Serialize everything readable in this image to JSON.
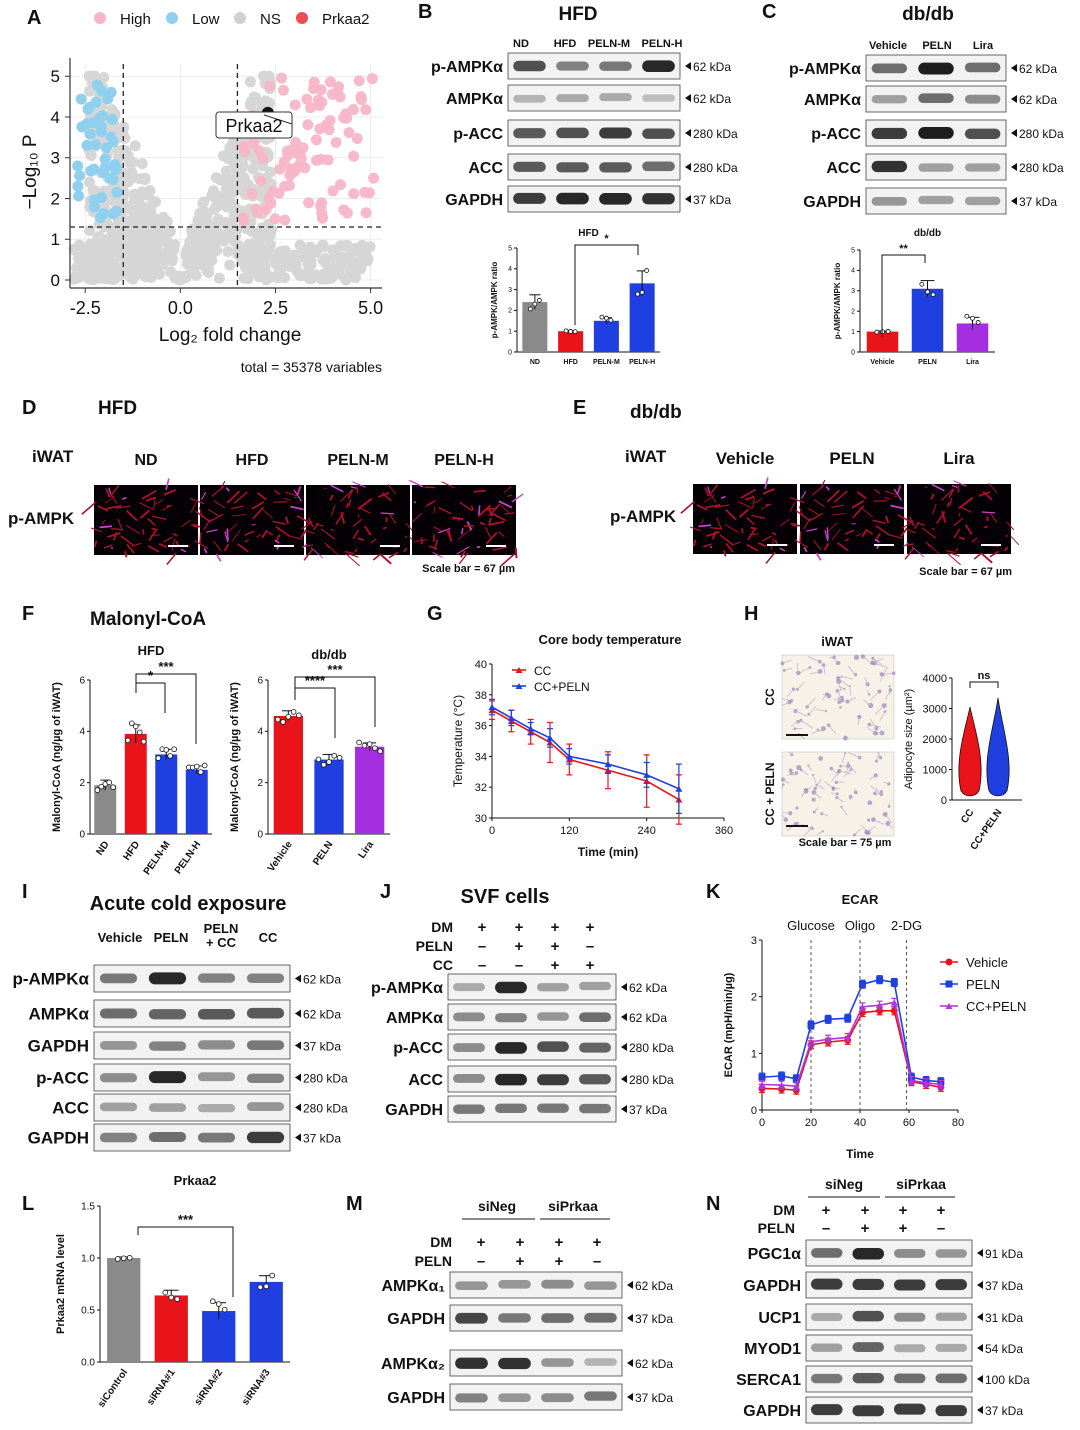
{
  "panel_letters": [
    "A",
    "B",
    "C",
    "D",
    "E",
    "F",
    "G",
    "H",
    "I",
    "J",
    "K",
    "L",
    "M",
    "N"
  ],
  "volcano": {
    "legend": [
      "High",
      "Low",
      "NS",
      "Prkaa2"
    ],
    "legend_colors": [
      "#f7b6c8",
      "#8fd0ee",
      "#d0d0d0",
      "#ee4c55"
    ],
    "xlabel": "Log₂ fold change",
    "ylabel": "−Log₁₀ P",
    "xticks": [
      "-2.5",
      "0.0",
      "2.5",
      "5.0"
    ],
    "yticks": [
      "0",
      "1",
      "2",
      "3",
      "4",
      "5"
    ],
    "highlight": "Prkaa2",
    "total_note": "total = 35378 variables"
  },
  "chart_data": [
    {
      "id": "B-bar",
      "type": "bar",
      "title": "HFD",
      "ylabel": "p-AMPK/AMPK ratio",
      "categories": [
        "ND",
        "HFD",
        "PELN-M",
        "PELN-H"
      ],
      "values": [
        2.4,
        1.0,
        1.5,
        3.3
      ],
      "errors": [
        0.35,
        0.03,
        0.15,
        0.6
      ],
      "colors": [
        "#8a8a8a",
        "#e8141a",
        "#1f3fe0",
        "#1f3fe0"
      ],
      "ylim": [
        0,
        5
      ],
      "yticks": [
        "0",
        "1",
        "2",
        "3",
        "4",
        "5"
      ],
      "sig": [
        "*"
      ]
    },
    {
      "id": "C-bar",
      "type": "bar",
      "title": "db/db",
      "ylabel": "p-AMPK/AMPK ratio",
      "categories": [
        "Vehicle",
        "PELN",
        "Lira"
      ],
      "values": [
        1.0,
        3.1,
        1.4
      ],
      "errors": [
        0.03,
        0.4,
        0.3
      ],
      "colors": [
        "#e8141a",
        "#1f3fe0",
        "#a42ee0"
      ],
      "ylim": [
        0,
        5
      ],
      "yticks": [
        "0",
        "1",
        "2",
        "3",
        "4",
        "5"
      ],
      "sig": [
        "**"
      ]
    },
    {
      "id": "F-hfd",
      "type": "bar",
      "title": "HFD",
      "ylabel": "Malonyl-CoA (ng/µg of iWAT)",
      "categories": [
        "ND",
        "HFD",
        "PELN-M",
        "PELN-H"
      ],
      "values": [
        1.9,
        3.9,
        3.1,
        2.5
      ],
      "errors": [
        0.2,
        0.35,
        0.2,
        0.15
      ],
      "colors": [
        "#8a8a8a",
        "#e8141a",
        "#1f3fe0",
        "#1f3fe0"
      ],
      "ylim": [
        0,
        6
      ],
      "yticks": [
        "0",
        "2",
        "4",
        "6"
      ],
      "sig": [
        "*",
        "***"
      ]
    },
    {
      "id": "F-db",
      "type": "bar",
      "title": "db/db",
      "ylabel": "Malonyl-CoA (ng/µg of iWAT)",
      "categories": [
        "Vehicle",
        "PELN",
        "Lira"
      ],
      "values": [
        4.6,
        2.9,
        3.4
      ],
      "errors": [
        0.2,
        0.2,
        0.15
      ],
      "colors": [
        "#e8141a",
        "#1f3fe0",
        "#a42ee0"
      ],
      "ylim": [
        0,
        6
      ],
      "yticks": [
        "0",
        "2",
        "4",
        "6"
      ],
      "sig": [
        "****",
        "***"
      ]
    },
    {
      "id": "G-line",
      "type": "line",
      "title": "Core body temperature",
      "xlabel": "Time (min)",
      "ylabel": "Temperature (°C)",
      "xlim": [
        0,
        360
      ],
      "ylim": [
        30,
        40
      ],
      "xticks": [
        "0",
        "120",
        "240",
        "360"
      ],
      "yticks": [
        "30",
        "32",
        "34",
        "36",
        "38",
        "40"
      ],
      "x": [
        0,
        30,
        60,
        90,
        120,
        180,
        240,
        290
      ],
      "series": [
        {
          "name": "CC",
          "color": "#e8141a",
          "values": [
            37.0,
            36.3,
            35.6,
            34.9,
            33.8,
            33.1,
            32.4,
            31.2
          ],
          "errors": [
            0.6,
            0.7,
            0.8,
            1.3,
            1.0,
            1.2,
            1.7,
            1.6
          ]
        },
        {
          "name": "CC+PELN",
          "color": "#1f3fe0",
          "values": [
            37.2,
            36.5,
            35.8,
            35.2,
            34.0,
            33.5,
            32.8,
            31.9
          ],
          "errors": [
            0.5,
            0.5,
            0.4,
            0.6,
            0.5,
            0.6,
            0.8,
            1.6
          ]
        }
      ]
    },
    {
      "id": "H-violin",
      "type": "violin",
      "ylabel": "Adipocyte size (µm²)",
      "categories": [
        "CC",
        "CC+PELN"
      ],
      "ylim": [
        0,
        4000
      ],
      "yticks": [
        "0",
        "1000",
        "2000",
        "3000",
        "4000"
      ],
      "colors": [
        "#e8141a",
        "#1f3fe0"
      ],
      "sig": [
        "ns"
      ]
    },
    {
      "id": "K-line",
      "type": "line",
      "title": "ECAR",
      "xlabel": "Time",
      "ylabel": "ECAR (mpH/min/µg)",
      "xlim": [
        0,
        80
      ],
      "ylim": [
        0,
        3
      ],
      "xticks": [
        "0",
        "20",
        "40",
        "60",
        "80"
      ],
      "yticks": [
        "0",
        "1",
        "2",
        "3"
      ],
      "annotations": [
        "Glucose",
        "Oligo",
        "2-DG"
      ],
      "x": [
        0,
        8,
        14,
        20,
        27,
        35,
        41,
        48,
        54,
        61,
        67,
        73
      ],
      "series": [
        {
          "name": "Vehicle",
          "color": "#e8141a",
          "values": [
            0.38,
            0.37,
            0.35,
            1.15,
            1.2,
            1.23,
            1.72,
            1.75,
            1.75,
            0.5,
            0.45,
            0.4
          ]
        },
        {
          "name": "PELN",
          "color": "#1f3fe0",
          "values": [
            0.58,
            0.6,
            0.55,
            1.5,
            1.6,
            1.62,
            2.22,
            2.3,
            2.25,
            0.58,
            0.52,
            0.5
          ]
        },
        {
          "name": "CC+PELN",
          "color": "#b233e0",
          "values": [
            0.45,
            0.44,
            0.42,
            1.2,
            1.25,
            1.28,
            1.82,
            1.85,
            1.9,
            0.52,
            0.48,
            0.45
          ]
        }
      ]
    },
    {
      "id": "L-bar",
      "type": "bar",
      "title": "Prkaa2",
      "ylabel": "Prkaa2 mRNA level",
      "categories": [
        "siControl",
        "siRNA#1",
        "siRNA#2",
        "siRNA#3"
      ],
      "values": [
        1.0,
        0.64,
        0.49,
        0.77
      ],
      "errors": [
        0.01,
        0.05,
        0.08,
        0.06
      ],
      "colors": [
        "#8a8a8a",
        "#e8141a",
        "#1f3fe0",
        "#1f3fe0"
      ],
      "ylim": [
        0,
        1.5
      ],
      "yticks": [
        "0.0",
        "0.5",
        "1.0",
        "1.5"
      ],
      "sig": [
        "***"
      ]
    }
  ],
  "blotB": {
    "title": "HFD",
    "columns": [
      "ND",
      "HFD",
      "PELN-M",
      "PELN-H"
    ],
    "rows": [
      {
        "label": "p-AMPKα",
        "kda": "62 kDa"
      },
      {
        "label": "AMPKα",
        "kda": "62 kDa"
      },
      {
        "label": "p-ACC",
        "kda": "280 kDa"
      },
      {
        "label": "ACC",
        "kda": "280 kDa"
      },
      {
        "label": "GAPDH",
        "kda": "37 kDa"
      }
    ]
  },
  "blotC": {
    "title": "db/db",
    "columns": [
      "Vehicle",
      "PELN",
      "Lira"
    ],
    "rows": [
      {
        "label": "p-AMPKα",
        "kda": "62 kDa"
      },
      {
        "label": "AMPKα",
        "kda": "62 kDa"
      },
      {
        "label": "p-ACC",
        "kda": "280 kDa"
      },
      {
        "label": "ACC",
        "kda": "280 kDa"
      },
      {
        "label": "GAPDH",
        "kda": "37 kDa"
      }
    ]
  },
  "panelD": {
    "title": "HFD",
    "tissue": "iWAT",
    "stain": "p-AMPK",
    "columns": [
      "ND",
      "HFD",
      "PELN-M",
      "PELN-H"
    ],
    "scale": "Scale bar = 67 µm"
  },
  "panelE": {
    "title": "db/db",
    "tissue": "iWAT",
    "stain": "p-AMPK",
    "columns": [
      "Vehicle",
      "PELN",
      "Lira"
    ],
    "scale": "Scale bar = 67 µm"
  },
  "panelF": {
    "title": "Malonyl-CoA"
  },
  "panelH": {
    "title": "iWAT",
    "rows": [
      "CC",
      "CC + PELN"
    ],
    "scale": "Scale bar = 75 µm"
  },
  "blotI": {
    "title": "Acute cold exposure",
    "columns": [
      "Vehicle",
      "PELN",
      "PELN\n+ CC",
      "CC"
    ],
    "rows": [
      {
        "label": "p-AMPKα",
        "kda": "62 kDa"
      },
      {
        "label": "AMPKα",
        "kda": "62 kDa"
      },
      {
        "label": "GAPDH",
        "kda": "37 kDa"
      },
      {
        "label": "p-ACC",
        "kda": "280 kDa"
      },
      {
        "label": "ACC",
        "kda": "280 kDa"
      },
      {
        "label": "GAPDH",
        "kda": "37 kDa"
      }
    ]
  },
  "blotJ": {
    "title": "SVF cells",
    "treatments": [
      {
        "name": "DM",
        "signs": [
          "+",
          "+",
          "+",
          "+"
        ]
      },
      {
        "name": "PELN",
        "signs": [
          "–",
          "+",
          "+",
          "–"
        ]
      },
      {
        "name": "CC",
        "signs": [
          "–",
          "–",
          "+",
          "+"
        ]
      }
    ],
    "rows": [
      {
        "label": "p-AMPKα",
        "kda": "62 kDa"
      },
      {
        "label": "AMPKα",
        "kda": "62 kDa"
      },
      {
        "label": "p-ACC",
        "kda": "280 kDa"
      },
      {
        "label": "ACC",
        "kda": "280 kDa"
      },
      {
        "label": "GAPDH",
        "kda": "37 kDa"
      }
    ]
  },
  "blotM": {
    "groups": [
      "siNeg",
      "siPrkaa"
    ],
    "treatments": [
      {
        "name": "DM",
        "signs": [
          "+",
          "+",
          "+",
          "+"
        ]
      },
      {
        "name": "PELN",
        "signs": [
          "–",
          "+",
          "+",
          "–"
        ]
      }
    ],
    "rows": [
      {
        "label": "AMPKα₁",
        "kda": "62 kDa"
      },
      {
        "label": "GAPDH",
        "kda": "37 kDa"
      },
      {
        "label": "AMPKα₂",
        "kda": "62 kDa"
      },
      {
        "label": "GAPDH",
        "kda": "37 kDa"
      }
    ]
  },
  "blotN": {
    "groups": [
      "siNeg",
      "siPrkaa"
    ],
    "treatments": [
      {
        "name": "DM",
        "signs": [
          "+",
          "+",
          "+",
          "+"
        ]
      },
      {
        "name": "PELN",
        "signs": [
          "–",
          "+",
          "+",
          "–"
        ]
      }
    ],
    "rows": [
      {
        "label": "PGC1α",
        "kda": "91 kDa"
      },
      {
        "label": "GAPDH",
        "kda": "37 kDa"
      },
      {
        "label": "UCP1",
        "kda": "31 kDa"
      },
      {
        "label": "MYOD1",
        "kda": "54 kDa"
      },
      {
        "label": "SERCA1",
        "kda": "100 kDa"
      },
      {
        "label": "GAPDH",
        "kda": "37 kDa"
      }
    ]
  }
}
